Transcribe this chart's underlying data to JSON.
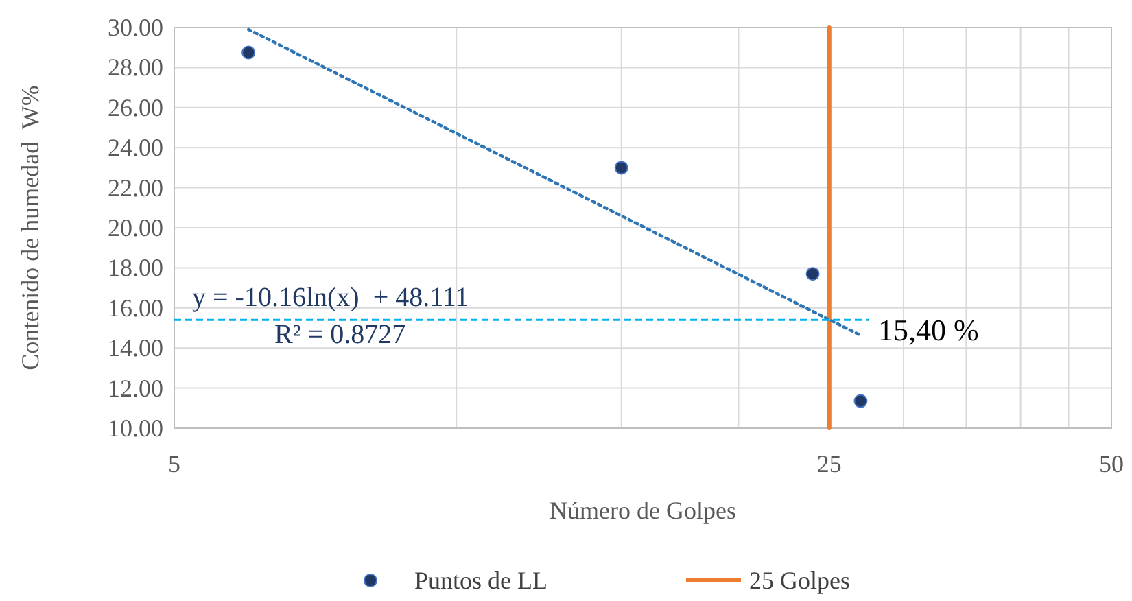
{
  "chart_data": {
    "type": "scatter",
    "xlabel": "Número de Golpes",
    "ylabel": "Contenido de humedad  W%",
    "log": "x",
    "xlim": [
      5,
      50
    ],
    "xticks": [
      5,
      {
        "value": 10,
        "label": null
      },
      {
        "value": 15,
        "label": null
      },
      {
        "value": 20,
        "label": null
      },
      25,
      {
        "value": 30,
        "label": null
      },
      {
        "value": 35,
        "label": null
      },
      {
        "value": 40,
        "label": null
      },
      {
        "value": 45,
        "label": null
      },
      50
    ],
    "ylim": [
      10,
      30
    ],
    "yticks": [
      {
        "value": 10,
        "label": "10.00"
      },
      {
        "value": 12,
        "label": "12.00"
      },
      {
        "value": 14,
        "label": "14.00"
      },
      {
        "value": 16,
        "label": "16.00"
      },
      {
        "value": 18,
        "label": "18.00"
      },
      {
        "value": 20,
        "label": "20.00"
      },
      {
        "value": 22,
        "label": "22.00"
      },
      {
        "value": 24,
        "label": "24.00"
      },
      {
        "value": 26,
        "label": "26.00"
      },
      {
        "value": 28,
        "label": "28.00"
      },
      {
        "value": 30,
        "label": "30.00"
      }
    ],
    "grid": true,
    "legend": "bottom",
    "series": [
      {
        "name": "Puntos de LL",
        "marker": "circle",
        "color": "#1f3864",
        "x": [
          6,
          15,
          24,
          27
        ],
        "values": [
          28.75,
          23.0,
          17.7,
          11.35
        ]
      },
      {
        "name": "25 Golpes",
        "type": "line",
        "marker": "none",
        "color": "#ed7d31",
        "x": [
          25,
          25
        ],
        "values": [
          10,
          30
        ]
      },
      {
        "type": "line",
        "marker": "none",
        "color": "#2e75b6",
        "line_style": "dotted",
        "x": [
          6,
          27
        ],
        "values": [
          29.9,
          14.63
        ]
      }
    ],
    "ref_lines": [
      {
        "axis": "y",
        "value": 15.4,
        "label": "15,40 %",
        "color": "#00b0f0",
        "line_style": "dashed"
      }
    ],
    "annotations": [
      "y = -10.16ln(x)  + 48.111",
      "R² = 0.8727"
    ]
  }
}
